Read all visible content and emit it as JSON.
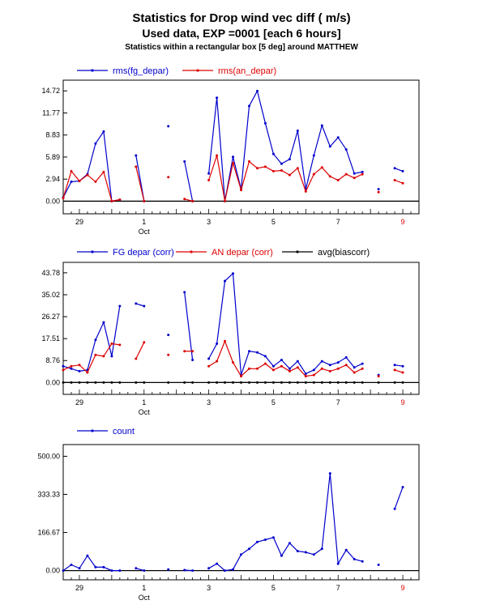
{
  "title": "Statistics for  Drop wind vec diff ( m/s)",
  "subtitle": "Used data, EXP =0001 [each  6 hours]",
  "subtitle2": "Statistics within a rectangular box [5 deg] around MATTHEW",
  "x_axis": {
    "date_ticks": [
      {
        "t": 0,
        "label": "29",
        "color": "#000000"
      },
      {
        "t": 2,
        "label": "1",
        "color": "#000000"
      },
      {
        "t": 4,
        "label": "3",
        "color": "#000000"
      },
      {
        "t": 6,
        "label": "5",
        "color": "#000000"
      },
      {
        "t": 8,
        "label": "7",
        "color": "#000000"
      },
      {
        "t": 10,
        "label": "9",
        "color": "#dd0000"
      }
    ],
    "month_label": {
      "t": 2,
      "label": "Oct"
    },
    "range": [
      -0.5,
      10.5
    ]
  },
  "colors": {
    "blue": "#0000cc",
    "red": "#dd0000",
    "black": "#000000"
  },
  "chart_data": [
    {
      "type": "line",
      "yticks": [
        "0.00",
        "2.94",
        "5.89",
        "8.83",
        "11.77",
        "14.72"
      ],
      "ylim": [
        -0.6,
        15.5
      ],
      "series": [
        {
          "name": "rms(fg_depar)",
          "color": "#0000cc",
          "segments": [
            [
              [
                -0.5,
                0.5
              ],
              [
                -0.25,
                2.6
              ],
              [
                0,
                2.7
              ],
              [
                0.25,
                3.6
              ],
              [
                0.5,
                7.7
              ],
              [
                0.75,
                9.3
              ],
              [
                1,
                0
              ],
              [
                1.25,
                0.2
              ]
            ],
            [
              [
                1.75,
                6.1
              ],
              [
                2,
                0
              ]
            ],
            [
              [
                2.75,
                10.0
              ]
            ],
            [
              [
                3.25,
                5.3
              ],
              [
                3.5,
                0
              ]
            ],
            [
              [
                4,
                3.7
              ],
              [
                4.25,
                13.8
              ],
              [
                4.5,
                0
              ],
              [
                4.75,
                5.9
              ],
              [
                5,
                1.6
              ],
              [
                5.25,
                12.7
              ],
              [
                5.5,
                14.7
              ],
              [
                5.75,
                10.4
              ],
              [
                6,
                6.3
              ],
              [
                6.25,
                5.0
              ],
              [
                6.5,
                5.6
              ],
              [
                6.75,
                9.4
              ],
              [
                7,
                1.6
              ],
              [
                7.25,
                6.1
              ],
              [
                7.5,
                10.1
              ],
              [
                7.75,
                7.3
              ],
              [
                8,
                8.5
              ],
              [
                8.25,
                6.9
              ],
              [
                8.5,
                3.7
              ],
              [
                8.75,
                3.9
              ]
            ],
            [
              [
                9.25,
                1.6
              ]
            ],
            [
              [
                9.75,
                4.4
              ],
              [
                10,
                4.0
              ]
            ]
          ]
        },
        {
          "name": "rms(an_depar)",
          "color": "#dd0000",
          "segments": [
            [
              [
                -0.5,
                0.4
              ],
              [
                -0.25,
                4.0
              ],
              [
                0,
                2.7
              ],
              [
                0.25,
                3.5
              ],
              [
                0.5,
                2.6
              ],
              [
                0.75,
                3.9
              ],
              [
                1,
                0
              ],
              [
                1.25,
                0.2
              ]
            ],
            [
              [
                1.75,
                4.6
              ],
              [
                2,
                0
              ]
            ],
            [
              [
                2.75,
                3.2
              ]
            ],
            [
              [
                3.25,
                0.3
              ],
              [
                3.5,
                0
              ]
            ],
            [
              [
                4,
                2.8
              ],
              [
                4.25,
                6.1
              ],
              [
                4.5,
                0
              ],
              [
                4.75,
                5.1
              ],
              [
                5,
                1.5
              ],
              [
                5.25,
                5.3
              ],
              [
                5.5,
                4.4
              ],
              [
                5.75,
                4.6
              ],
              [
                6,
                4.0
              ],
              [
                6.25,
                4.1
              ],
              [
                6.5,
                3.5
              ],
              [
                6.75,
                4.4
              ],
              [
                7,
                1.3
              ],
              [
                7.25,
                3.6
              ],
              [
                7.5,
                4.5
              ],
              [
                7.75,
                3.3
              ],
              [
                8,
                2.8
              ],
              [
                8.25,
                3.6
              ],
              [
                8.5,
                3.1
              ],
              [
                8.75,
                3.6
              ]
            ],
            [
              [
                9.25,
                1.2
              ]
            ],
            [
              [
                9.75,
                2.8
              ],
              [
                10,
                2.4
              ]
            ]
          ]
        }
      ]
    },
    {
      "type": "line",
      "yticks": [
        "0.00",
        "8.76",
        "17.51",
        "26.27",
        "35.02",
        "43.78"
      ],
      "ylim": [
        -1.5,
        46.0
      ],
      "series": [
        {
          "name": "FG depar (corr)",
          "color": "#0000cc",
          "segments": [
            [
              [
                -0.5,
                6.5
              ],
              [
                -0.25,
                5.5
              ],
              [
                0,
                4.5
              ],
              [
                0.25,
                5.0
              ],
              [
                0.5,
                17
              ],
              [
                0.75,
                24
              ],
              [
                1,
                10.5
              ],
              [
                1.25,
                30.5
              ]
            ],
            [
              [
                1.75,
                31.5
              ],
              [
                2,
                30.5
              ]
            ],
            [
              [
                2.75,
                19
              ]
            ],
            [
              [
                3.25,
                36
              ],
              [
                3.5,
                9.0
              ]
            ],
            [
              [
                4,
                9.5
              ],
              [
                4.25,
                15.5
              ],
              [
                4.5,
                40.5
              ],
              [
                4.75,
                43.5
              ],
              [
                5,
                3.0
              ],
              [
                5.25,
                12.5
              ],
              [
                5.5,
                12.0
              ],
              [
                5.75,
                10.5
              ],
              [
                6,
                6.5
              ],
              [
                6.25,
                9.0
              ],
              [
                6.5,
                5.5
              ],
              [
                6.75,
                8.5
              ],
              [
                7,
                3.5
              ],
              [
                7.25,
                5.0
              ],
              [
                7.5,
                8.5
              ],
              [
                7.75,
                7.0
              ],
              [
                8,
                8.0
              ],
              [
                8.25,
                10.0
              ],
              [
                8.5,
                6.0
              ],
              [
                8.75,
                7.5
              ]
            ],
            [
              [
                9.25,
                3.0
              ]
            ],
            [
              [
                9.75,
                7.0
              ],
              [
                10,
                6.5
              ]
            ]
          ]
        },
        {
          "name": "AN depar (corr)",
          "color": "#dd0000",
          "segments": [
            [
              [
                -0.5,
                5.0
              ],
              [
                -0.25,
                6.5
              ],
              [
                0,
                7.0
              ],
              [
                0.25,
                4.0
              ],
              [
                0.5,
                11.0
              ],
              [
                0.75,
                10.5
              ],
              [
                1,
                15.5
              ],
              [
                1.25,
                15.0
              ]
            ],
            [
              [
                1.75,
                9.5
              ],
              [
                2,
                16
              ]
            ],
            [
              [
                2.75,
                11
              ]
            ],
            [
              [
                3.25,
                12.5
              ],
              [
                3.5,
                12.5
              ]
            ],
            [
              [
                4,
                6.5
              ],
              [
                4.25,
                8.5
              ],
              [
                4.5,
                16.5
              ],
              [
                4.75,
                8.0
              ],
              [
                5,
                2.5
              ],
              [
                5.25,
                5.5
              ],
              [
                5.5,
                5.5
              ],
              [
                5.75,
                7.5
              ],
              [
                6,
                5.0
              ],
              [
                6.25,
                6.5
              ],
              [
                6.5,
                4.5
              ],
              [
                6.75,
                6.0
              ],
              [
                7,
                2.5
              ],
              [
                7.25,
                3.0
              ],
              [
                7.5,
                5.5
              ],
              [
                7.75,
                4.5
              ],
              [
                8,
                5.5
              ],
              [
                8.25,
                7.0
              ],
              [
                8.5,
                4.0
              ],
              [
                8.75,
                5.5
              ]
            ],
            [
              [
                9.25,
                2.5
              ]
            ],
            [
              [
                9.75,
                5.0
              ],
              [
                10,
                4.0
              ]
            ]
          ]
        },
        {
          "name": "avg(biascorr)",
          "color": "#000000",
          "segments": [
            [
              [
                -0.5,
                0
              ],
              [
                -0.25,
                0
              ],
              [
                0,
                0
              ],
              [
                0.25,
                0
              ],
              [
                0.5,
                0
              ],
              [
                0.75,
                0
              ],
              [
                1,
                0
              ],
              [
                1.25,
                0
              ]
            ],
            [
              [
                1.75,
                0
              ],
              [
                2,
                0
              ]
            ],
            [
              [
                2.75,
                0
              ]
            ],
            [
              [
                3.25,
                0
              ],
              [
                3.5,
                0
              ]
            ],
            [
              [
                4,
                0
              ],
              [
                4.25,
                0
              ],
              [
                4.5,
                0
              ],
              [
                4.75,
                0
              ],
              [
                5,
                0
              ],
              [
                5.25,
                0
              ],
              [
                5.5,
                0
              ],
              [
                5.75,
                0
              ],
              [
                6,
                0
              ],
              [
                6.25,
                0
              ],
              [
                6.5,
                0
              ],
              [
                6.75,
                0
              ],
              [
                7,
                0
              ],
              [
                7.25,
                0
              ],
              [
                7.5,
                0
              ],
              [
                7.75,
                0
              ],
              [
                8,
                0
              ],
              [
                8.25,
                0
              ],
              [
                8.5,
                0
              ],
              [
                8.75,
                0
              ]
            ],
            [
              [
                9.25,
                0
              ]
            ],
            [
              [
                9.75,
                0
              ],
              [
                10,
                0
              ]
            ]
          ]
        }
      ]
    },
    {
      "type": "line",
      "yticks": [
        "0.00",
        "166.67",
        "333.33",
        "500.00"
      ],
      "ylim": [
        -5,
        530
      ],
      "series": [
        {
          "name": "count",
          "color": "#0000cc",
          "segments": [
            [
              [
                -0.5,
                0
              ],
              [
                -0.25,
                25
              ],
              [
                0,
                10
              ],
              [
                0.25,
                65
              ],
              [
                0.5,
                15
              ],
              [
                0.75,
                15
              ],
              [
                1,
                0
              ],
              [
                1.25,
                0
              ]
            ],
            [
              [
                1.75,
                10
              ],
              [
                2,
                0
              ]
            ],
            [
              [
                2.75,
                5
              ]
            ],
            [
              [
                3.25,
                2
              ],
              [
                3.5,
                0
              ]
            ],
            [
              [
                4,
                10
              ],
              [
                4.25,
                30
              ],
              [
                4.5,
                0
              ],
              [
                4.75,
                5
              ],
              [
                5,
                70
              ],
              [
                5.25,
                95
              ],
              [
                5.5,
                125
              ],
              [
                5.75,
                135
              ],
              [
                6,
                145
              ],
              [
                6.25,
                65
              ],
              [
                6.5,
                120
              ],
              [
                6.75,
                85
              ],
              [
                7,
                80
              ],
              [
                7.25,
                70
              ],
              [
                7.5,
                95
              ],
              [
                7.75,
                425
              ],
              [
                8,
                30
              ],
              [
                8.25,
                90
              ],
              [
                8.5,
                50
              ],
              [
                8.75,
                40
              ]
            ],
            [
              [
                9.25,
                25
              ]
            ],
            [
              [
                9.75,
                270
              ],
              [
                10,
                365
              ]
            ]
          ]
        }
      ]
    }
  ]
}
